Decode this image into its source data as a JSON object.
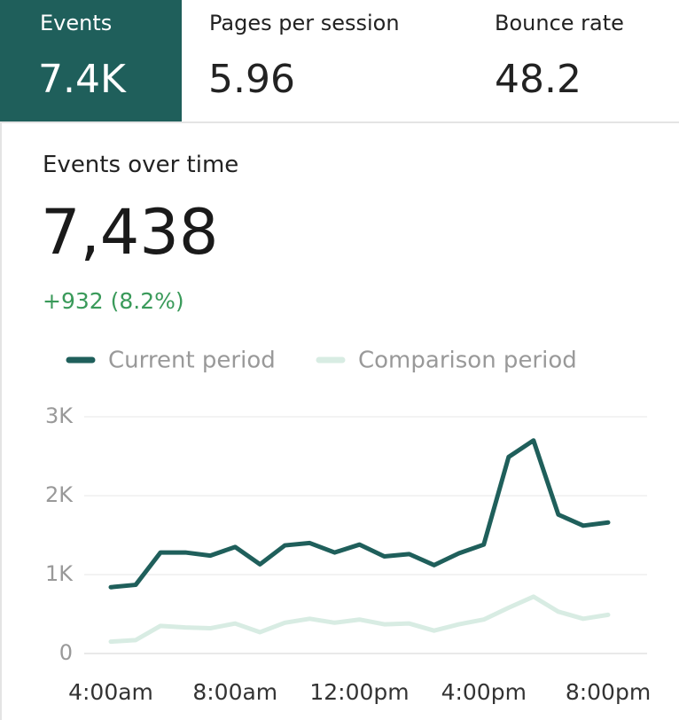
{
  "tabs": [
    {
      "label": "Events",
      "value": "7.4K"
    },
    {
      "label": "Pages per session",
      "value": "5.96"
    },
    {
      "label": "Bounce rate",
      "value": "48.2"
    }
  ],
  "summary": {
    "total": "7,438",
    "change": "+932 (8.2%)"
  },
  "chart_data": {
    "type": "line",
    "title": "Events over time",
    "categories": [
      "4:00am",
      null,
      null,
      null,
      null,
      "8:00am",
      null,
      null,
      null,
      null,
      "12:00pm",
      null,
      null,
      null,
      null,
      "4:00pm",
      null,
      null,
      null,
      null,
      "8:00pm"
    ],
    "series": [
      {
        "name": "Current period",
        "color": "#1f5f5b",
        "values": [
          840,
          870,
          1280,
          1280,
          1240,
          1350,
          1130,
          1370,
          1400,
          1280,
          1380,
          1230,
          1260,
          1120,
          1270,
          1380,
          2490,
          2700,
          1760,
          1620,
          1660
        ]
      },
      {
        "name": "Comparison period",
        "color": "#d8ece3",
        "values": [
          150,
          170,
          350,
          330,
          320,
          380,
          270,
          390,
          440,
          390,
          430,
          370,
          380,
          290,
          370,
          430,
          580,
          720,
          530,
          440,
          490
        ]
      }
    ],
    "ylim": [
      0,
      3000
    ],
    "yticks": [
      0,
      {
        "value": 1000,
        "label": "1K"
      },
      {
        "value": 2000,
        "label": "2K"
      },
      {
        "value": 3000,
        "label": "3K"
      }
    ],
    "grid": true,
    "legend": "top"
  }
}
